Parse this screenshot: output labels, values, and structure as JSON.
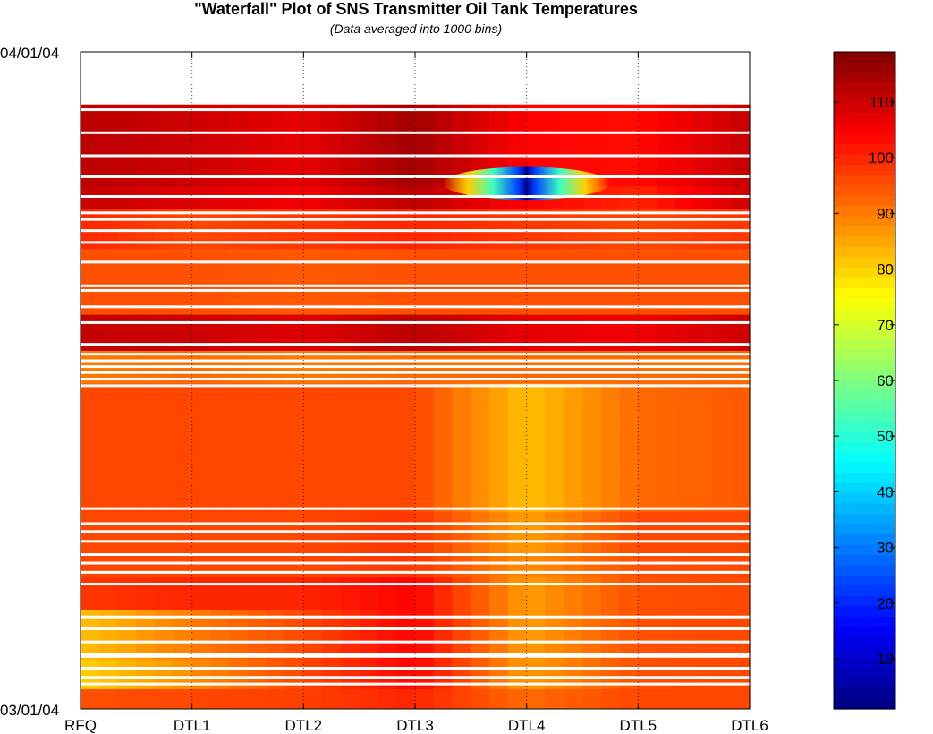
{
  "chart_data": {
    "type": "heatmap",
    "title": "\"Waterfall\" Plot of SNS Transmitter Oil Tank Temperatures",
    "subtitle": "(Data averaged into 1000 bins)",
    "x_categories": [
      "RFQ",
      "DTL1",
      "DTL2",
      "DTL3",
      "DTL4",
      "DTL5",
      "DTL6"
    ],
    "y_axis": {
      "top_label": "04/01/04",
      "bottom_label": "03/01/04"
    },
    "grid": true,
    "colorbar": {
      "min": 1,
      "max": 119,
      "ticks": [
        10,
        20,
        30,
        40,
        50,
        60,
        70,
        80,
        90,
        100,
        110
      ],
      "colormap": "jet"
    },
    "bands": [
      {
        "t0": 0.0,
        "t1": 0.08,
        "values": null
      },
      {
        "t0": 0.08,
        "t1": 0.205,
        "values": [
          112,
          110,
          107,
          115,
          104,
          103,
          111
        ]
      },
      {
        "t0": 0.205,
        "t1": 0.24,
        "values": [
          111,
          108,
          106,
          112,
          104,
          100,
          110
        ]
      },
      {
        "t0": 0.24,
        "t1": 0.3,
        "values": [
          100,
          96,
          98,
          100,
          98,
          96,
          98
        ]
      },
      {
        "t0": 0.3,
        "t1": 0.4,
        "values": [
          95,
          95,
          94,
          95,
          95,
          95,
          95
        ]
      },
      {
        "t0": 0.4,
        "t1": 0.455,
        "values": [
          111,
          110,
          108,
          112,
          107,
          106,
          110
        ]
      },
      {
        "t0": 0.455,
        "t1": 0.505,
        "values": [
          90,
          92,
          90,
          92,
          92,
          92,
          92
        ]
      },
      {
        "t0": 0.505,
        "t1": 0.7,
        "values": [
          96,
          96,
          96,
          96,
          82,
          92,
          94
        ]
      },
      {
        "t0": 0.7,
        "t1": 0.765,
        "values": [
          96,
          96,
          96,
          98,
          86,
          96,
          96
        ]
      },
      {
        "t0": 0.765,
        "t1": 0.8,
        "values": [
          96,
          96,
          96,
          98,
          88,
          95,
          96
        ]
      },
      {
        "t0": 0.8,
        "t1": 0.85,
        "values": [
          98,
          100,
          100,
          104,
          86,
          95,
          96
        ]
      },
      {
        "t0": 0.85,
        "t1": 0.925,
        "values": [
          82,
          90,
          96,
          104,
          86,
          95,
          96
        ]
      },
      {
        "t0": 0.925,
        "t1": 0.97,
        "values": [
          80,
          88,
          96,
          104,
          86,
          95,
          96
        ]
      },
      {
        "t0": 0.97,
        "t1": 1.0,
        "values": [
          95,
          96,
          97,
          100,
          92,
          96,
          96
        ]
      }
    ],
    "anomalies": [
      {
        "label": "DTL4 cold spot",
        "x_center": 4.0,
        "x_halfwidth": 0.75,
        "t0": 0.175,
        "t1": 0.225,
        "min_value": 5
      }
    ],
    "gaps": [
      0.088,
      0.123,
      0.158,
      0.19,
      0.22,
      0.245,
      0.255,
      0.272,
      0.29,
      0.32,
      0.356,
      0.363,
      0.388,
      0.412,
      0.445,
      0.46,
      0.47,
      0.479,
      0.488,
      0.498,
      0.508,
      0.695,
      0.718,
      0.73,
      0.745,
      0.765,
      0.778,
      0.792,
      0.81,
      0.86,
      0.878,
      0.898,
      0.917,
      0.92,
      0.938,
      0.952,
      0.962
    ]
  }
}
